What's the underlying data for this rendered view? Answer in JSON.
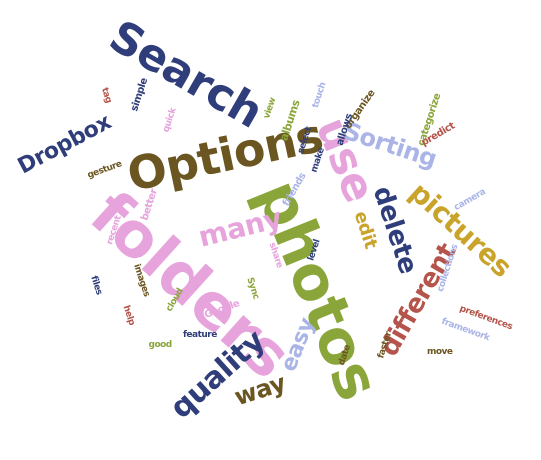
{
  "words": [
    {
      "text": "photos",
      "color": "#8aa63a"
    },
    {
      "text": "folders",
      "color": "#e6a3dc"
    },
    {
      "text": "Options",
      "color": "#6b5520"
    },
    {
      "text": "Search",
      "color": "#2f3e7a"
    },
    {
      "text": "use",
      "color": "#e6a3dc"
    },
    {
      "text": "Sorting",
      "color": "#aab4e6"
    },
    {
      "text": "Dropbox",
      "color": "#2f3e7a"
    },
    {
      "text": "pictures",
      "color": "#c9a32a"
    },
    {
      "text": "delete",
      "color": "#2f3e7a"
    },
    {
      "text": "edit",
      "color": "#c9a32a"
    },
    {
      "text": "different",
      "color": "#b4544a"
    },
    {
      "text": "many",
      "color": "#e6a3dc"
    },
    {
      "text": "quality",
      "color": "#2f3e7a"
    },
    {
      "text": "way",
      "color": "#6b5520"
    },
    {
      "text": "easy",
      "color": "#aab4e6"
    },
    {
      "text": "albums",
      "color": "#8aa63a"
    },
    {
      "text": "organize",
      "color": "#6b5520"
    },
    {
      "text": "allows",
      "color": "#2f3e7a"
    },
    {
      "text": "categorize",
      "color": "#8aa63a"
    },
    {
      "text": "predict",
      "color": "#b4544a"
    },
    {
      "text": "friends",
      "color": "#aab4e6"
    },
    {
      "text": "simple",
      "color": "#2f3e7a"
    },
    {
      "text": "better",
      "color": "#e6a3dc"
    },
    {
      "text": "gesture",
      "color": "#6b5520"
    },
    {
      "text": "files",
      "color": "#2f3e7a"
    },
    {
      "text": "Sync",
      "color": "#8aa63a"
    },
    {
      "text": "share",
      "color": "#e6a3dc"
    },
    {
      "text": "make",
      "color": "#2f3e7a"
    },
    {
      "text": "tag",
      "color": "#b4544a"
    },
    {
      "text": "faster",
      "color": "#6b5520"
    },
    {
      "text": "collections",
      "color": "#aab4e6"
    },
    {
      "text": "cloud",
      "color": "#8aa63a"
    },
    {
      "text": "feature",
      "color": "#2f3e7a"
    },
    {
      "text": "Google",
      "color": "#e6a3dc"
    },
    {
      "text": "move",
      "color": "#6b5520"
    },
    {
      "text": "framework",
      "color": "#aab4e6"
    },
    {
      "text": "level",
      "color": "#2f3e7a"
    },
    {
      "text": "preferences",
      "color": "#b4544a"
    },
    {
      "text": "view",
      "color": "#8aa63a"
    },
    {
      "text": "images",
      "color": "#6b5520"
    },
    {
      "text": "quick",
      "color": "#e6a3dc"
    },
    {
      "text": "touch",
      "color": "#aab4e6"
    },
    {
      "text": "select",
      "color": "#2f3e7a"
    },
    {
      "text": "good",
      "color": "#8aa63a"
    },
    {
      "text": "help",
      "color": "#b4544a"
    },
    {
      "text": "date",
      "color": "#6b5520"
    },
    {
      "text": "camera",
      "color": "#aab4e6"
    },
    {
      "text": "recent",
      "color": "#e6a3dc"
    }
  ]
}
